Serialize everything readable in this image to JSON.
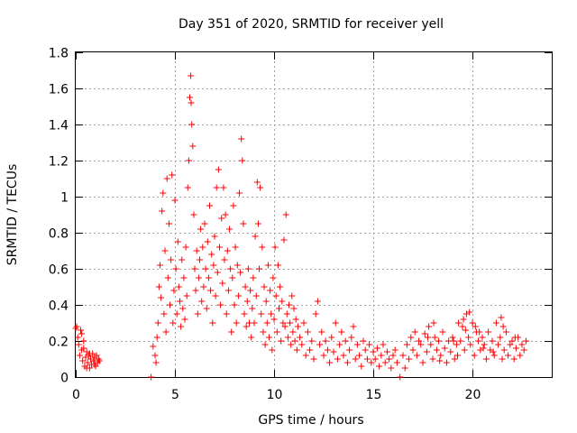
{
  "chart_data": {
    "type": "scatter",
    "title": "Day 351 of 2020, SRMTID for receiver yell",
    "xlabel": "GPS time / hours",
    "ylabel": "SRMTID / TECUs",
    "xlim": [
      0,
      24
    ],
    "ylim": [
      0,
      1.8
    ],
    "xticks": [
      0,
      5,
      10,
      15,
      20
    ],
    "yticks": [
      0,
      0.2,
      0.4,
      0.6,
      0.8,
      1,
      1.2,
      1.4,
      1.6,
      1.8
    ],
    "ytick_labels": [
      "0",
      "0.2",
      "0.4",
      "0.6",
      "0.8",
      "1",
      "1.2",
      "1.4",
      "1.6",
      "1.8"
    ],
    "grid": true,
    "marker": "plus",
    "color": "#ff0000",
    "series": [
      {
        "name": "SRMTID",
        "points": [
          [
            0.0,
            0.27
          ],
          [
            0.05,
            0.28
          ],
          [
            0.1,
            0.22
          ],
          [
            0.15,
            0.18
          ],
          [
            0.2,
            0.12
          ],
          [
            0.25,
            0.26
          ],
          [
            0.3,
            0.15
          ],
          [
            0.35,
            0.09
          ],
          [
            0.4,
            0.2
          ],
          [
            0.45,
            0.06
          ],
          [
            0.5,
            0.11
          ],
          [
            0.55,
            0.14
          ],
          [
            0.6,
            0.08
          ],
          [
            0.65,
            0.12
          ],
          [
            0.7,
            0.05
          ],
          [
            0.75,
            0.1
          ],
          [
            0.8,
            0.07
          ],
          [
            0.85,
            0.13
          ],
          [
            0.9,
            0.09
          ],
          [
            0.95,
            0.11
          ],
          [
            1.0,
            0.06
          ],
          [
            1.05,
            0.12
          ],
          [
            1.1,
            0.08
          ],
          [
            1.15,
            0.1
          ],
          [
            1.2,
            0.09
          ],
          [
            0.3,
            0.24
          ],
          [
            0.4,
            0.16
          ],
          [
            0.55,
            0.05
          ],
          [
            0.7,
            0.13
          ],
          [
            0.95,
            0.07
          ],
          [
            3.8,
            0.0
          ],
          [
            3.9,
            0.17
          ],
          [
            4.0,
            0.12
          ],
          [
            4.05,
            0.08
          ],
          [
            4.1,
            0.22
          ],
          [
            4.15,
            0.3
          ],
          [
            4.2,
            0.5
          ],
          [
            4.25,
            0.62
          ],
          [
            4.3,
            0.44
          ],
          [
            4.35,
            0.92
          ],
          [
            4.4,
            1.02
          ],
          [
            4.45,
            0.35
          ],
          [
            4.5,
            0.7
          ],
          [
            4.55,
            0.25
          ],
          [
            4.6,
            1.1
          ],
          [
            4.65,
            0.55
          ],
          [
            4.7,
            0.85
          ],
          [
            4.75,
            0.4
          ],
          [
            4.8,
            0.65
          ],
          [
            4.85,
            1.12
          ],
          [
            4.9,
            0.3
          ],
          [
            4.95,
            0.48
          ],
          [
            5.0,
            0.98
          ],
          [
            5.05,
            0.6
          ],
          [
            5.1,
            0.35
          ],
          [
            5.15,
            0.75
          ],
          [
            5.2,
            0.5
          ],
          [
            5.25,
            0.42
          ],
          [
            5.3,
            0.28
          ],
          [
            5.35,
            0.65
          ],
          [
            5.4,
            0.38
          ],
          [
            5.45,
            0.55
          ],
          [
            5.5,
            0.32
          ],
          [
            5.55,
            0.72
          ],
          [
            5.6,
            0.45
          ],
          [
            5.65,
            1.05
          ],
          [
            5.7,
            1.2
          ],
          [
            5.75,
            1.55
          ],
          [
            5.8,
            1.67
          ],
          [
            5.82,
            1.52
          ],
          [
            5.85,
            1.4
          ],
          [
            5.9,
            1.28
          ],
          [
            5.95,
            0.9
          ],
          [
            6.0,
            0.6
          ],
          [
            6.05,
            0.48
          ],
          [
            6.1,
            0.7
          ],
          [
            6.15,
            0.35
          ],
          [
            6.2,
            0.55
          ],
          [
            6.25,
            0.65
          ],
          [
            6.3,
            0.82
          ],
          [
            6.35,
            0.42
          ],
          [
            6.4,
            0.72
          ],
          [
            6.45,
            0.5
          ],
          [
            6.5,
            0.85
          ],
          [
            6.55,
            0.6
          ],
          [
            6.6,
            0.38
          ],
          [
            6.65,
            0.75
          ],
          [
            6.7,
            0.55
          ],
          [
            6.75,
            0.95
          ],
          [
            6.8,
            0.48
          ],
          [
            6.85,
            0.68
          ],
          [
            6.9,
            0.3
          ],
          [
            6.95,
            0.62
          ],
          [
            7.0,
            0.78
          ],
          [
            7.05,
            0.45
          ],
          [
            7.1,
            1.05
          ],
          [
            7.15,
            0.58
          ],
          [
            7.2,
            1.15
          ],
          [
            7.25,
            0.72
          ],
          [
            7.3,
            0.4
          ],
          [
            7.35,
            0.88
          ],
          [
            7.4,
            0.52
          ],
          [
            7.45,
            1.05
          ],
          [
            7.5,
            0.65
          ],
          [
            7.55,
            0.9
          ],
          [
            7.6,
            0.35
          ],
          [
            7.65,
            0.7
          ],
          [
            7.7,
            0.48
          ],
          [
            7.75,
            0.82
          ],
          [
            7.8,
            0.6
          ],
          [
            7.85,
            0.25
          ],
          [
            7.9,
            0.55
          ],
          [
            7.95,
            0.95
          ],
          [
            8.0,
            0.4
          ],
          [
            8.05,
            0.72
          ],
          [
            8.1,
            0.3
          ],
          [
            8.15,
            0.62
          ],
          [
            8.2,
            0.45
          ],
          [
            8.25,
            1.02
          ],
          [
            8.3,
            0.58
          ],
          [
            8.35,
            1.32
          ],
          [
            8.4,
            1.2
          ],
          [
            8.45,
            0.85
          ],
          [
            8.5,
            0.35
          ],
          [
            8.55,
            0.5
          ],
          [
            8.6,
            0.28
          ],
          [
            8.65,
            0.42
          ],
          [
            8.7,
            0.6
          ],
          [
            8.75,
            0.3
          ],
          [
            8.8,
            0.48
          ],
          [
            8.85,
            0.22
          ],
          [
            8.9,
            0.38
          ],
          [
            8.95,
            0.55
          ],
          [
            9.0,
            0.3
          ],
          [
            9.05,
            0.78
          ],
          [
            9.1,
            0.45
          ],
          [
            9.15,
            1.08
          ],
          [
            9.2,
            0.85
          ],
          [
            9.25,
            0.6
          ],
          [
            9.3,
            1.05
          ],
          [
            9.35,
            0.35
          ],
          [
            9.4,
            0.72
          ],
          [
            9.45,
            0.25
          ],
          [
            9.5,
            0.5
          ],
          [
            9.55,
            0.18
          ],
          [
            9.6,
            0.42
          ],
          [
            9.65,
            0.3
          ],
          [
            9.7,
            0.62
          ],
          [
            9.75,
            0.22
          ],
          [
            9.8,
            0.48
          ],
          [
            9.85,
            0.35
          ],
          [
            9.9,
            0.15
          ],
          [
            9.95,
            0.55
          ],
          [
            10.0,
            0.32
          ],
          [
            10.05,
            0.72
          ],
          [
            10.1,
            0.45
          ],
          [
            10.15,
            0.25
          ],
          [
            10.2,
            0.62
          ],
          [
            10.25,
            0.38
          ],
          [
            10.3,
            0.5
          ],
          [
            10.35,
            0.2
          ],
          [
            10.4,
            0.42
          ],
          [
            10.45,
            0.3
          ],
          [
            10.5,
            0.76
          ],
          [
            10.55,
            0.28
          ],
          [
            10.6,
            0.9
          ],
          [
            10.65,
            0.35
          ],
          [
            10.7,
            0.22
          ],
          [
            10.75,
            0.4
          ],
          [
            10.8,
            0.3
          ],
          [
            10.85,
            0.18
          ],
          [
            10.9,
            0.45
          ],
          [
            10.95,
            0.25
          ],
          [
            11.0,
            0.38
          ],
          [
            11.05,
            0.2
          ],
          [
            11.1,
            0.32
          ],
          [
            11.15,
            0.15
          ],
          [
            11.2,
            0.28
          ],
          [
            11.3,
            0.22
          ],
          [
            11.4,
            0.18
          ],
          [
            11.5,
            0.3
          ],
          [
            11.6,
            0.12
          ],
          [
            11.7,
            0.25
          ],
          [
            11.8,
            0.15
          ],
          [
            11.9,
            0.2
          ],
          [
            12.0,
            0.1
          ],
          [
            12.1,
            0.35
          ],
          [
            12.2,
            0.42
          ],
          [
            12.3,
            0.18
          ],
          [
            12.4,
            0.25
          ],
          [
            12.5,
            0.12
          ],
          [
            12.6,
            0.2
          ],
          [
            12.7,
            0.15
          ],
          [
            12.8,
            0.08
          ],
          [
            12.9,
            0.22
          ],
          [
            13.0,
            0.14
          ],
          [
            13.1,
            0.3
          ],
          [
            13.2,
            0.1
          ],
          [
            13.3,
            0.18
          ],
          [
            13.4,
            0.25
          ],
          [
            13.5,
            0.12
          ],
          [
            13.6,
            0.2
          ],
          [
            13.7,
            0.08
          ],
          [
            13.8,
            0.15
          ],
          [
            13.9,
            0.22
          ],
          [
            14.0,
            0.28
          ],
          [
            14.1,
            0.1
          ],
          [
            14.2,
            0.18
          ],
          [
            14.3,
            0.12
          ],
          [
            14.4,
            0.06
          ],
          [
            14.5,
            0.2
          ],
          [
            14.6,
            0.15
          ],
          [
            14.7,
            0.1
          ],
          [
            14.8,
            0.18
          ],
          [
            14.9,
            0.08
          ],
          [
            15.0,
            0.14
          ],
          [
            15.1,
            0.1
          ],
          [
            15.2,
            0.16
          ],
          [
            15.3,
            0.06
          ],
          [
            15.4,
            0.12
          ],
          [
            15.5,
            0.18
          ],
          [
            15.6,
            0.08
          ],
          [
            15.7,
            0.14
          ],
          [
            15.8,
            0.1
          ],
          [
            15.9,
            0.05
          ],
          [
            16.0,
            0.12
          ],
          [
            16.1,
            0.15
          ],
          [
            16.2,
            0.08
          ],
          [
            16.35,
            0.0
          ],
          [
            16.5,
            0.12
          ],
          [
            16.6,
            0.05
          ],
          [
            16.7,
            0.18
          ],
          [
            16.8,
            0.1
          ],
          [
            16.9,
            0.22
          ],
          [
            17.0,
            0.15
          ],
          [
            17.1,
            0.25
          ],
          [
            17.2,
            0.12
          ],
          [
            17.3,
            0.2
          ],
          [
            17.4,
            0.18
          ],
          [
            17.5,
            0.08
          ],
          [
            17.6,
            0.24
          ],
          [
            17.7,
            0.14
          ],
          [
            17.8,
            0.28
          ],
          [
            17.9,
            0.18
          ],
          [
            18.0,
            0.1
          ],
          [
            18.1,
            0.22
          ],
          [
            18.2,
            0.15
          ],
          [
            18.3,
            0.2
          ],
          [
            18.4,
            0.12
          ],
          [
            18.5,
            0.25
          ],
          [
            18.6,
            0.16
          ],
          [
            18.7,
            0.08
          ],
          [
            18.8,
            0.2
          ],
          [
            18.9,
            0.14
          ],
          [
            19.0,
            0.22
          ],
          [
            19.1,
            0.1
          ],
          [
            19.2,
            0.18
          ],
          [
            19.3,
            0.3
          ],
          [
            19.4,
            0.2
          ],
          [
            19.5,
            0.28
          ],
          [
            19.6,
            0.15
          ],
          [
            19.7,
            0.35
          ],
          [
            19.8,
            0.22
          ],
          [
            19.9,
            0.18
          ],
          [
            20.0,
            0.3
          ],
          [
            20.1,
            0.12
          ],
          [
            20.2,
            0.25
          ],
          [
            20.3,
            0.2
          ],
          [
            20.4,
            0.15
          ],
          [
            20.5,
            0.22
          ],
          [
            20.6,
            0.18
          ],
          [
            20.7,
            0.1
          ],
          [
            20.8,
            0.25
          ],
          [
            20.9,
            0.15
          ],
          [
            21.0,
            0.2
          ],
          [
            21.1,
            0.12
          ],
          [
            21.2,
            0.3
          ],
          [
            21.3,
            0.18
          ],
          [
            21.4,
            0.22
          ],
          [
            21.5,
            0.1
          ],
          [
            21.6,
            0.15
          ],
          [
            21.7,
            0.25
          ],
          [
            21.8,
            0.12
          ],
          [
            21.9,
            0.18
          ],
          [
            22.0,
            0.2
          ],
          [
            22.1,
            0.1
          ],
          [
            22.2,
            0.16
          ],
          [
            22.3,
            0.22
          ],
          [
            22.4,
            0.12
          ],
          [
            22.5,
            0.18
          ],
          [
            22.6,
            0.15
          ],
          [
            22.7,
            0.2
          ],
          [
            17.75,
            0.22
          ],
          [
            18.05,
            0.3
          ],
          [
            19.05,
            0.2
          ],
          [
            19.55,
            0.32
          ],
          [
            19.65,
            0.26
          ],
          [
            19.85,
            0.36
          ],
          [
            20.15,
            0.28
          ],
          [
            20.35,
            0.25
          ],
          [
            21.45,
            0.33
          ],
          [
            21.55,
            0.28
          ],
          [
            22.15,
            0.22
          ],
          [
            20.55,
            0.16
          ],
          [
            18.35,
            0.09
          ],
          [
            19.25,
            0.12
          ],
          [
            21.05,
            0.14
          ]
        ]
      }
    ]
  }
}
